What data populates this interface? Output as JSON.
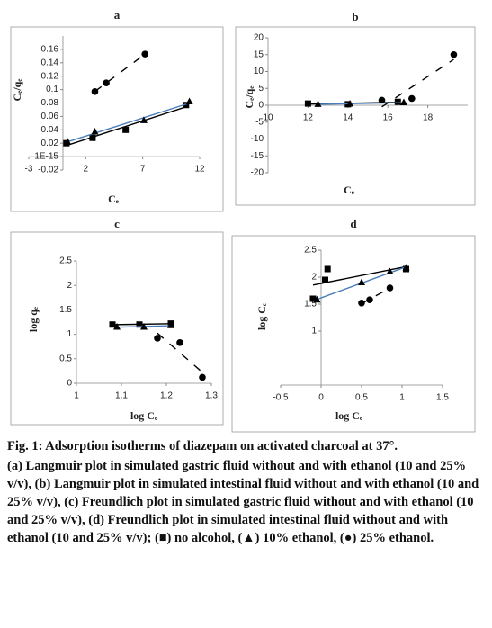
{
  "chart_data": [
    {
      "type": "scatter",
      "title": "a",
      "x_label": "Cₑ",
      "y_label": "Cₑ/qₑ",
      "xlim": [
        -3,
        12
      ],
      "xticks": [
        -3,
        2,
        7,
        12
      ],
      "ylim": [
        -0.02,
        0.18
      ],
      "yticks": [
        -0.02,
        {
          "value": 1e-15,
          "label": "1E-15"
        },
        0.02,
        0.04,
        0.06,
        0.08,
        0.1,
        0.12,
        0.14,
        0.16
      ],
      "trendline": true,
      "series": [
        {
          "marker": "square",
          "color": "#000000",
          "trend_color": "#000000",
          "trend_style": "solid",
          "x": [
            0.3,
            2.6,
            5.5,
            10.8
          ],
          "values": [
            0.02,
            0.028,
            0.04,
            0.077
          ]
        },
        {
          "marker": "triangle",
          "color": "#000000",
          "trend_color": "#4a7ebb",
          "trend_style": "solid",
          "x": [
            0.4,
            2.8,
            7.1,
            11.1
          ],
          "values": [
            0.022,
            0.037,
            0.054,
            0.082
          ]
        },
        {
          "marker": "circle",
          "color": "#000000",
          "trend_color": "#000000",
          "trend_style": "dashed",
          "x": [
            2.8,
            3.8,
            7.2
          ],
          "values": [
            0.097,
            0.11,
            0.153
          ]
        }
      ]
    },
    {
      "type": "scatter",
      "title": "b",
      "x_label": "Cₑ",
      "y_label": "Cₑ/qₑ",
      "xlim": [
        10,
        20
      ],
      "xticks": [
        10,
        12,
        14,
        16,
        18
      ],
      "ylim": [
        -20,
        20
      ],
      "yticks": [
        -20,
        -15,
        -10,
        -5,
        0,
        5,
        10,
        15,
        20
      ],
      "trendline": true,
      "series": [
        {
          "marker": "square",
          "color": "#000000",
          "trend_color": "#000000",
          "trend_style": "solid",
          "x": [
            12,
            14,
            16.5
          ],
          "values": [
            0.5,
            0.3,
            1
          ]
        },
        {
          "marker": "triangle",
          "color": "#000000",
          "trend_color": "#4a7ebb",
          "trend_style": "solid",
          "x": [
            12.5,
            14.1,
            16.8
          ],
          "values": [
            0.3,
            0.4,
            0.8
          ]
        },
        {
          "marker": "circle",
          "color": "#000000",
          "trend_color": "#000000",
          "trend_style": "dashed",
          "x": [
            15.7,
            17.2,
            19.3
          ],
          "values": [
            1.5,
            2,
            15
          ]
        }
      ]
    },
    {
      "type": "scatter",
      "title": "c",
      "x_label": "log Cₑ",
      "y_label": "log qₑ",
      "xlim": [
        1,
        1.3
      ],
      "xticks": [
        1,
        1.1,
        1.2,
        1.3
      ],
      "ylim": [
        0,
        2.5
      ],
      "yticks": [
        0,
        0.5,
        1,
        1.5,
        2,
        2.5
      ],
      "trendline": true,
      "series": [
        {
          "marker": "square",
          "color": "#000000",
          "trend_color": "#000000",
          "trend_style": "solid",
          "x": [
            1.08,
            1.14,
            1.21
          ],
          "values": [
            1.2,
            1.2,
            1.22
          ]
        },
        {
          "marker": "triangle",
          "color": "#000000",
          "trend_color": "#4a7ebb",
          "trend_style": "solid",
          "x": [
            1.09,
            1.15,
            1.21
          ],
          "values": [
            1.15,
            1.15,
            1.18
          ]
        },
        {
          "marker": "circle",
          "color": "#000000",
          "trend_color": "#000000",
          "trend_style": "dashed",
          "x": [
            1.18,
            1.23,
            1.28
          ],
          "values": [
            0.92,
            0.83,
            0.12
          ]
        }
      ]
    },
    {
      "type": "scatter",
      "title": "d",
      "x_label": "log Cₑ",
      "y_label": "log Cₑ",
      "xlim": [
        -0.5,
        1.5
      ],
      "xticks": [
        -0.5,
        0,
        0.5,
        1,
        1.5
      ],
      "ylim": [
        0,
        2.5
      ],
      "yticks": [
        1,
        1.5,
        2,
        2.5
      ],
      "trendline": true,
      "series": [
        {
          "marker": "square",
          "color": "#000000",
          "trend_color": "#000000",
          "trend_style": "solid",
          "x": [
            -0.1,
            0.05,
            0.08,
            1.05
          ],
          "values": [
            1.6,
            1.95,
            2.15,
            2.15
          ]
        },
        {
          "marker": "triangle",
          "color": "#000000",
          "trend_color": "#4a7ebb",
          "trend_style": "solid",
          "x": [
            -0.05,
            0.5,
            0.85,
            1.05
          ],
          "values": [
            1.58,
            1.9,
            2.1,
            2.17
          ]
        },
        {
          "marker": "circle",
          "color": "#000000",
          "trend_color": "#000000",
          "trend_style": "dashed",
          "x": [
            0.5,
            0.6,
            0.85
          ],
          "values": [
            1.52,
            1.58,
            1.8
          ]
        }
      ]
    }
  ],
  "caption": {
    "title": "Fig. 1: Adsorption isotherms of diazepam on activated charcoal at 37°.",
    "text": "(a) Langmuir plot in simulated gastric fluid without and with ethanol (10 and 25% v/v), (b) Langmuir plot in simulated intestinal fluid without and with ethanol (10 and 25% v/v), (c) Freundlich plot in simulated gastric fluid without and with ethanol (10 and 25% v/v), (d) Freundlich plot in simulated intestinal fluid without and with ethanol (10 and 25% v/v); (■) no alcohol, (▲) 10% ethanol, (●) 25% ethanol."
  }
}
